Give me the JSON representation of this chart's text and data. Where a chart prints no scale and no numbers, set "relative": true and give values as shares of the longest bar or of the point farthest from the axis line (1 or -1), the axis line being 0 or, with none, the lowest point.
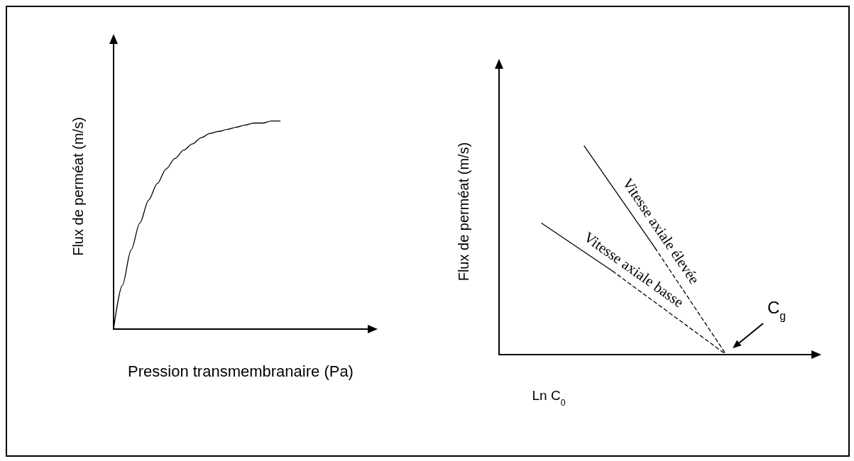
{
  "chart_data": [
    {
      "type": "line",
      "relative": true,
      "xlabel": "Pression transmembranaire (Pa)",
      "ylabel": "Flux de perméat (m/s)",
      "marker": "none",
      "grid": false,
      "legend": false,
      "categories": [
        null,
        null,
        null,
        null,
        null,
        null,
        null,
        null,
        null,
        null,
        null,
        null,
        null,
        null,
        null,
        null,
        null,
        null,
        null,
        null,
        null,
        null,
        null,
        null,
        null,
        null,
        null,
        null,
        null,
        null
      ],
      "series": [
        {
          "color": "#000000",
          "line_style": "solid",
          "values": [
            0,
            0.21,
            0.38,
            0.51,
            0.62,
            0.7,
            0.77,
            0.82,
            0.86,
            0.89,
            0.92,
            0.94,
            0.95,
            0.96,
            0.97,
            0.98,
            0.99,
            0.99,
            1,
            1,
            null,
            null,
            null,
            null,
            null,
            null,
            null,
            null,
            null,
            null
          ]
        }
      ]
    },
    {
      "type": "line",
      "relative": true,
      "xlabel": "Ln C$_{0}$",
      "ylabel": "Flux de perméat (m/s)",
      "marker": "none",
      "grid": false,
      "legend": false,
      "categories": [
        null,
        null,
        null,
        null,
        null,
        null,
        null,
        null,
        null,
        null,
        null,
        null,
        null,
        null,
        null,
        null,
        null,
        null,
        null,
        null,
        null,
        null,
        null
      ],
      "annotations": [
        "C$_{g}$"
      ],
      "series": [
        {
          "name": "Vitesse axiale basse",
          "color": "#000000",
          "line_style": "solid",
          "values": [
            null,
            null,
            null,
            0.63,
            null,
            null,
            null,
            null,
            0.4,
            null,
            null,
            null,
            null,
            null,
            null,
            null,
            null,
            null,
            null,
            null,
            null,
            null,
            null
          ]
        },
        {
          "color": "#000000",
          "line_style": "dashed",
          "values": [
            null,
            null,
            null,
            null,
            null,
            null,
            null,
            null,
            0.4,
            null,
            null,
            null,
            null,
            null,
            null,
            null,
            0,
            null,
            null,
            null,
            null,
            null,
            null
          ]
        },
        {
          "name": "Vitesse axiale élevée",
          "color": "#000000",
          "line_style": "solid",
          "values": [
            null,
            null,
            null,
            null,
            null,
            null,
            1,
            null,
            null,
            null,
            null,
            0.51,
            null,
            null,
            null,
            null,
            null,
            null,
            null,
            null,
            null,
            null,
            null
          ]
        },
        {
          "color": "#000000",
          "line_style": "dashed",
          "values": [
            null,
            null,
            null,
            null,
            null,
            null,
            null,
            null,
            null,
            null,
            null,
            0.51,
            null,
            null,
            null,
            null,
            0,
            null,
            null,
            null,
            null,
            null,
            null
          ]
        }
      ]
    }
  ]
}
